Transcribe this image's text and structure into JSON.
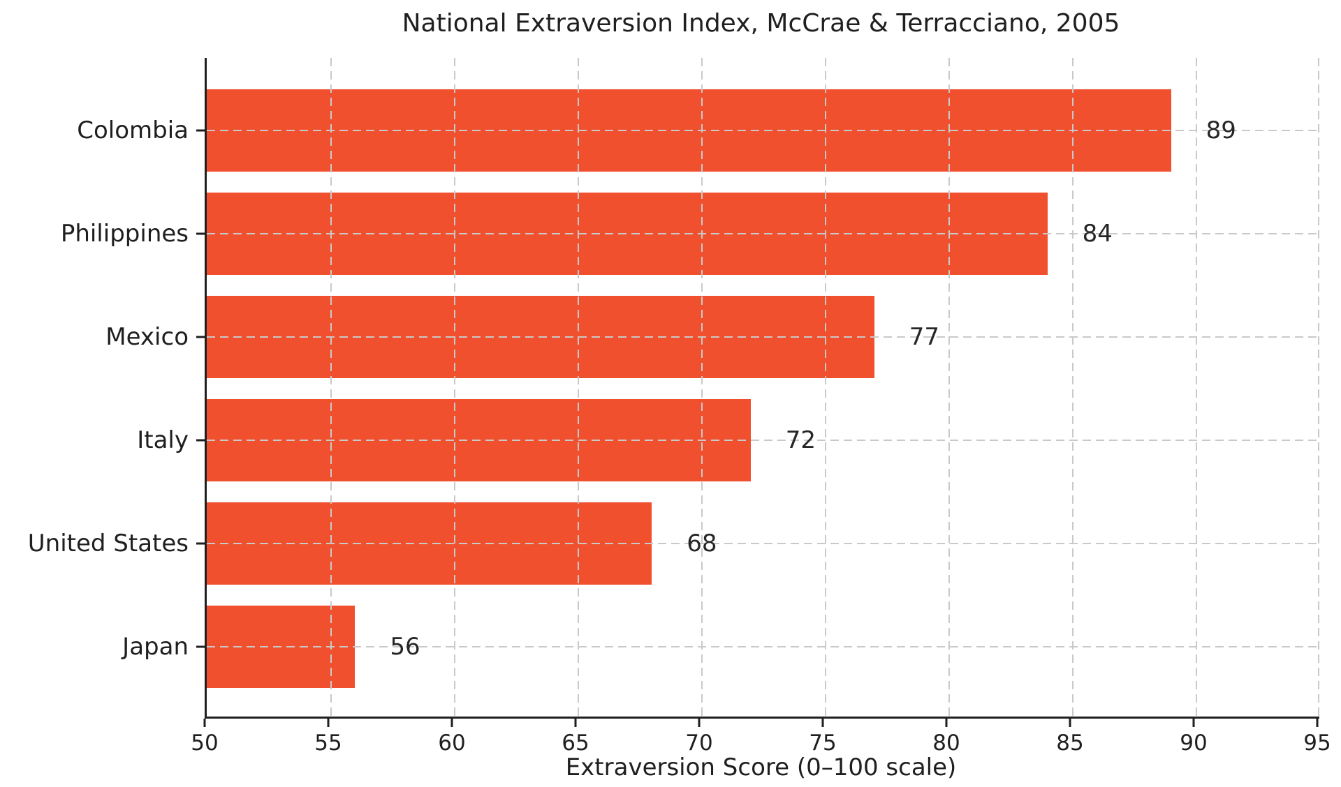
{
  "chart_data": {
    "type": "bar",
    "orientation": "horizontal",
    "title": "National Extraversion Index, McCrae & Terracciano, 2005",
    "xlabel": "Extraversion Score (0–100 scale)",
    "ylabel": "",
    "categories": [
      "Colombia",
      "Philippines",
      "Mexico",
      "Italy",
      "United States",
      "Japan"
    ],
    "values": [
      89,
      84,
      77,
      72,
      68,
      56
    ],
    "value_labels": [
      "89",
      "84",
      "77",
      "72",
      "68",
      "56"
    ],
    "xlim": [
      50,
      95
    ],
    "xticks": [
      50,
      55,
      60,
      65,
      70,
      75,
      80,
      85,
      90,
      95
    ],
    "grid": "dashed",
    "legend": "none",
    "colors": {
      "bar": "#F0502E",
      "grid": "#C9C9C9",
      "text": "#1F1F1F",
      "axis": "#1F1F1F",
      "background": "#FFFFFF"
    }
  }
}
